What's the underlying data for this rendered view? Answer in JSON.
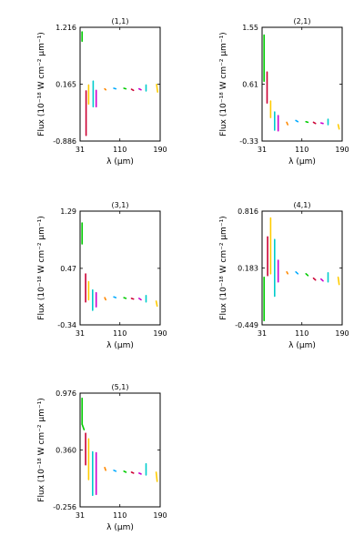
{
  "chart_data": [
    {
      "type": "line",
      "title": "(1,1)",
      "xlabel": "λ (μm)",
      "ylabel": "Flux (10⁻¹⁸ W cm⁻² μm⁻¹)",
      "xticks": [
        "31",
        "110",
        "190"
      ],
      "yticks": [
        "-0.886",
        "0.165",
        "1.216"
      ],
      "xlim": [
        31,
        190
      ],
      "ylim": [
        -0.886,
        1.216
      ],
      "series": [
        {
          "color": "#00cc00",
          "segments": [
            [
              [
                35,
                1.13
              ],
              [
                35,
                0.96
              ]
            ]
          ]
        },
        {
          "color": "#cc0033",
          "segments": [
            [
              [
                43,
                0.04
              ],
              [
                43,
                -0.78
              ]
            ]
          ]
        },
        {
          "color": "#ffcc00",
          "segments": [
            [
              [
                48,
                0.15
              ],
              [
                48,
                -0.2
              ]
            ]
          ]
        },
        {
          "color": "#00cccc",
          "segments": [
            [
              [
                57,
                0.22
              ],
              [
                57,
                -0.25
              ]
            ]
          ]
        },
        {
          "color": "#cc00cc",
          "segments": [
            [
              [
                63,
                0.05
              ],
              [
                63,
                -0.25
              ]
            ]
          ]
        },
        {
          "color": "#ff8800",
          "segments": [
            [
              [
                80,
                0.08
              ],
              [
                82,
                0.06
              ]
            ]
          ]
        },
        {
          "color": "#00aaff",
          "segments": [
            [
              [
                98,
                0.09
              ],
              [
                102,
                0.08
              ]
            ]
          ]
        },
        {
          "color": "#00cc00",
          "segments": [
            [
              [
                118,
                0.09
              ],
              [
                122,
                0.08
              ]
            ]
          ]
        },
        {
          "color": "#cc0033",
          "segments": [
            [
              [
                133,
                0.07
              ],
              [
                137,
                0.05
              ]
            ]
          ]
        },
        {
          "color": "#cc00cc",
          "segments": [
            [
              [
                148,
                0.08
              ],
              [
                152,
                0.06
              ]
            ]
          ]
        },
        {
          "color": "#00cccc",
          "segments": [
            [
              [
                162,
                0.15
              ],
              [
                162,
                0.04
              ]
            ]
          ]
        },
        {
          "color": "#ffcc00",
          "segments": [
            [
              [
                183,
                0.16
              ],
              [
                185,
                0.02
              ]
            ]
          ]
        }
      ]
    },
    {
      "type": "line",
      "title": "(2,1)",
      "xlabel": "λ (μm)",
      "ylabel": "Flux (10⁻¹⁸ W cm⁻² μm⁻¹)",
      "xticks": [
        "31",
        "110",
        "190"
      ],
      "yticks": [
        "-0.33",
        "0.61",
        "1.55"
      ],
      "xlim": [
        31,
        190
      ],
      "ylim": [
        -0.33,
        1.55
      ],
      "series": [
        {
          "color": "#00cc00",
          "segments": [
            [
              [
                35,
                1.42
              ],
              [
                35,
                0.66
              ]
            ]
          ]
        },
        {
          "color": "#cc0033",
          "segments": [
            [
              [
                41,
                0.81
              ],
              [
                41,
                0.3
              ]
            ]
          ]
        },
        {
          "color": "#ffcc00",
          "segments": [
            [
              [
                48,
                0.33
              ],
              [
                48,
                0.06
              ]
            ]
          ]
        },
        {
          "color": "#00cccc",
          "segments": [
            [
              [
                56,
                0.15
              ],
              [
                56,
                -0.15
              ]
            ]
          ]
        },
        {
          "color": "#cc00cc",
          "segments": [
            [
              [
                63,
                0.09
              ],
              [
                63,
                -0.16
              ]
            ]
          ]
        },
        {
          "color": "#ff8800",
          "segments": [
            [
              [
                80,
                -0.02
              ],
              [
                82,
                -0.06
              ]
            ]
          ]
        },
        {
          "color": "#00aaff",
          "segments": [
            [
              [
                98,
                0.01
              ],
              [
                102,
                -0.01
              ]
            ]
          ]
        },
        {
          "color": "#00cc00",
          "segments": [
            [
              [
                118,
                -0.01
              ],
              [
                122,
                -0.02
              ]
            ]
          ]
        },
        {
          "color": "#cc0033",
          "segments": [
            [
              [
                133,
                -0.02
              ],
              [
                137,
                -0.04
              ]
            ]
          ]
        },
        {
          "color": "#cc00cc",
          "segments": [
            [
              [
                148,
                -0.03
              ],
              [
                152,
                -0.04
              ]
            ]
          ]
        },
        {
          "color": "#00cccc",
          "segments": [
            [
              [
                162,
                0.03
              ],
              [
                162,
                -0.06
              ]
            ]
          ]
        },
        {
          "color": "#ffcc00",
          "segments": [
            [
              [
                182,
                -0.06
              ],
              [
                184,
                -0.13
              ]
            ]
          ]
        }
      ]
    },
    {
      "type": "line",
      "title": "(3,1)",
      "xlabel": "λ (μm)",
      "ylabel": "Flux (10⁻¹⁸ W cm⁻² μm⁻¹)",
      "xticks": [
        "31",
        "110",
        "190"
      ],
      "yticks": [
        "-0.34",
        "0.47",
        "1.29"
      ],
      "xlim": [
        31,
        190
      ],
      "ylim": [
        -0.34,
        1.29
      ],
      "series": [
        {
          "color": "#00cc00",
          "segments": [
            [
              [
                35,
                1.12
              ],
              [
                35,
                0.82
              ]
            ]
          ]
        },
        {
          "color": "#cc0033",
          "segments": [
            [
              [
                42,
                0.39
              ],
              [
                42,
                -0.01
              ]
            ]
          ]
        },
        {
          "color": "#ffcc00",
          "segments": [
            [
              [
                48,
                0.28
              ],
              [
                48,
                0.02
              ]
            ]
          ]
        },
        {
          "color": "#00cccc",
          "segments": [
            [
              [
                56,
                0.16
              ],
              [
                56,
                -0.13
              ]
            ]
          ]
        },
        {
          "color": "#cc00cc",
          "segments": [
            [
              [
                63,
                0.12
              ],
              [
                63,
                -0.08
              ]
            ]
          ]
        },
        {
          "color": "#ff8800",
          "segments": [
            [
              [
                80,
                0.05
              ],
              [
                82,
                0.02
              ]
            ]
          ]
        },
        {
          "color": "#00aaff",
          "segments": [
            [
              [
                98,
                0.06
              ],
              [
                102,
                0.05
              ]
            ]
          ]
        },
        {
          "color": "#00cc00",
          "segments": [
            [
              [
                118,
                0.05
              ],
              [
                122,
                0.04
              ]
            ]
          ]
        },
        {
          "color": "#cc0033",
          "segments": [
            [
              [
                133,
                0.04
              ],
              [
                137,
                0.03
              ]
            ]
          ]
        },
        {
          "color": "#cc00cc",
          "segments": [
            [
              [
                148,
                0.04
              ],
              [
                152,
                0.02
              ]
            ]
          ]
        },
        {
          "color": "#00cccc",
          "segments": [
            [
              [
                162,
                0.08
              ],
              [
                162,
                -0.01
              ]
            ]
          ]
        },
        {
          "color": "#ffcc00",
          "segments": [
            [
              [
                182,
                0.0
              ],
              [
                184,
                -0.07
              ]
            ]
          ]
        }
      ]
    },
    {
      "type": "line",
      "title": "(4,1)",
      "xlabel": "λ (μm)",
      "ylabel": "Flux (10⁻¹⁸ W cm⁻² μm⁻¹)",
      "xticks": [
        "31",
        "110",
        "190"
      ],
      "yticks": [
        "-0.449",
        "0.183",
        "0.816"
      ],
      "xlim": [
        31,
        190
      ],
      "ylim": [
        -0.449,
        0.816
      ],
      "series": [
        {
          "color": "#00cc00",
          "segments": [
            [
              [
                35,
                0.08
              ],
              [
                35,
                -0.4
              ]
            ]
          ]
        },
        {
          "color": "#cc0033",
          "segments": [
            [
              [
                42,
                0.53
              ],
              [
                42,
                0.1
              ]
            ]
          ]
        },
        {
          "color": "#ffcc00",
          "segments": [
            [
              [
                48,
                0.74
              ],
              [
                48,
                0.12
              ]
            ]
          ]
        },
        {
          "color": "#00cccc",
          "segments": [
            [
              [
                56,
                0.5
              ],
              [
                56,
                -0.13
              ]
            ]
          ]
        },
        {
          "color": "#cc00cc",
          "segments": [
            [
              [
                63,
                0.27
              ],
              [
                63,
                0.03
              ]
            ]
          ]
        },
        {
          "color": "#ff8800",
          "segments": [
            [
              [
                80,
                0.14
              ],
              [
                82,
                0.12
              ]
            ]
          ]
        },
        {
          "color": "#00aaff",
          "segments": [
            [
              [
                98,
                0.14
              ],
              [
                102,
                0.12
              ]
            ]
          ]
        },
        {
          "color": "#00cc00",
          "segments": [
            [
              [
                118,
                0.12
              ],
              [
                122,
                0.1
              ]
            ]
          ]
        },
        {
          "color": "#cc0033",
          "segments": [
            [
              [
                133,
                0.07
              ],
              [
                137,
                0.05
              ]
            ]
          ]
        },
        {
          "color": "#cc00cc",
          "segments": [
            [
              [
                148,
                0.06
              ],
              [
                152,
                0.04
              ]
            ]
          ]
        },
        {
          "color": "#00cccc",
          "segments": [
            [
              [
                162,
                0.13
              ],
              [
                162,
                0.03
              ]
            ]
          ]
        },
        {
          "color": "#ffcc00",
          "segments": [
            [
              [
                182,
                0.08
              ],
              [
                184,
                0.0
              ]
            ]
          ]
        }
      ]
    },
    {
      "type": "line",
      "title": "(5,1)",
      "xlabel": "λ (μm)",
      "ylabel": "Flux (10⁻¹⁸ W cm⁻² μm⁻¹)",
      "xticks": [
        "31",
        "110",
        "190"
      ],
      "yticks": [
        "-0.256",
        "0.360",
        "0.976"
      ],
      "xlim": [
        31,
        190
      ],
      "ylim": [
        -0.256,
        0.976
      ],
      "series": [
        {
          "color": "#00cc00",
          "segments": [
            [
              [
                35,
                0.92
              ],
              [
                35,
                0.64
              ]
            ],
            [
              [
                35,
                0.64
              ],
              [
                39,
                0.58
              ]
            ]
          ]
        },
        {
          "color": "#cc0033",
          "segments": [
            [
              [
                42,
                0.54
              ],
              [
                42,
                0.2
              ]
            ]
          ]
        },
        {
          "color": "#ffcc00",
          "segments": [
            [
              [
                48,
                0.48
              ],
              [
                48,
                0.04
              ]
            ]
          ]
        },
        {
          "color": "#00cccc",
          "segments": [
            [
              [
                56,
                0.34
              ],
              [
                56,
                -0.13
              ]
            ]
          ]
        },
        {
          "color": "#cc00cc",
          "segments": [
            [
              [
                63,
                0.33
              ],
              [
                63,
                -0.12
              ]
            ]
          ]
        },
        {
          "color": "#ff8800",
          "segments": [
            [
              [
                80,
                0.17
              ],
              [
                82,
                0.14
              ]
            ]
          ]
        },
        {
          "color": "#00aaff",
          "segments": [
            [
              [
                98,
                0.14
              ],
              [
                102,
                0.13
              ]
            ]
          ]
        },
        {
          "color": "#00cc00",
          "segments": [
            [
              [
                118,
                0.13
              ],
              [
                122,
                0.12
              ]
            ]
          ]
        },
        {
          "color": "#cc0033",
          "segments": [
            [
              [
                133,
                0.12
              ],
              [
                137,
                0.11
              ]
            ]
          ]
        },
        {
          "color": "#cc00cc",
          "segments": [
            [
              [
                148,
                0.11
              ],
              [
                152,
                0.1
              ]
            ]
          ]
        },
        {
          "color": "#00cccc",
          "segments": [
            [
              [
                162,
                0.21
              ],
              [
                162,
                0.09
              ]
            ]
          ]
        },
        {
          "color": "#ffcc00",
          "segments": [
            [
              [
                182,
                0.12
              ],
              [
                184,
                0.02
              ]
            ]
          ]
        }
      ]
    }
  ]
}
